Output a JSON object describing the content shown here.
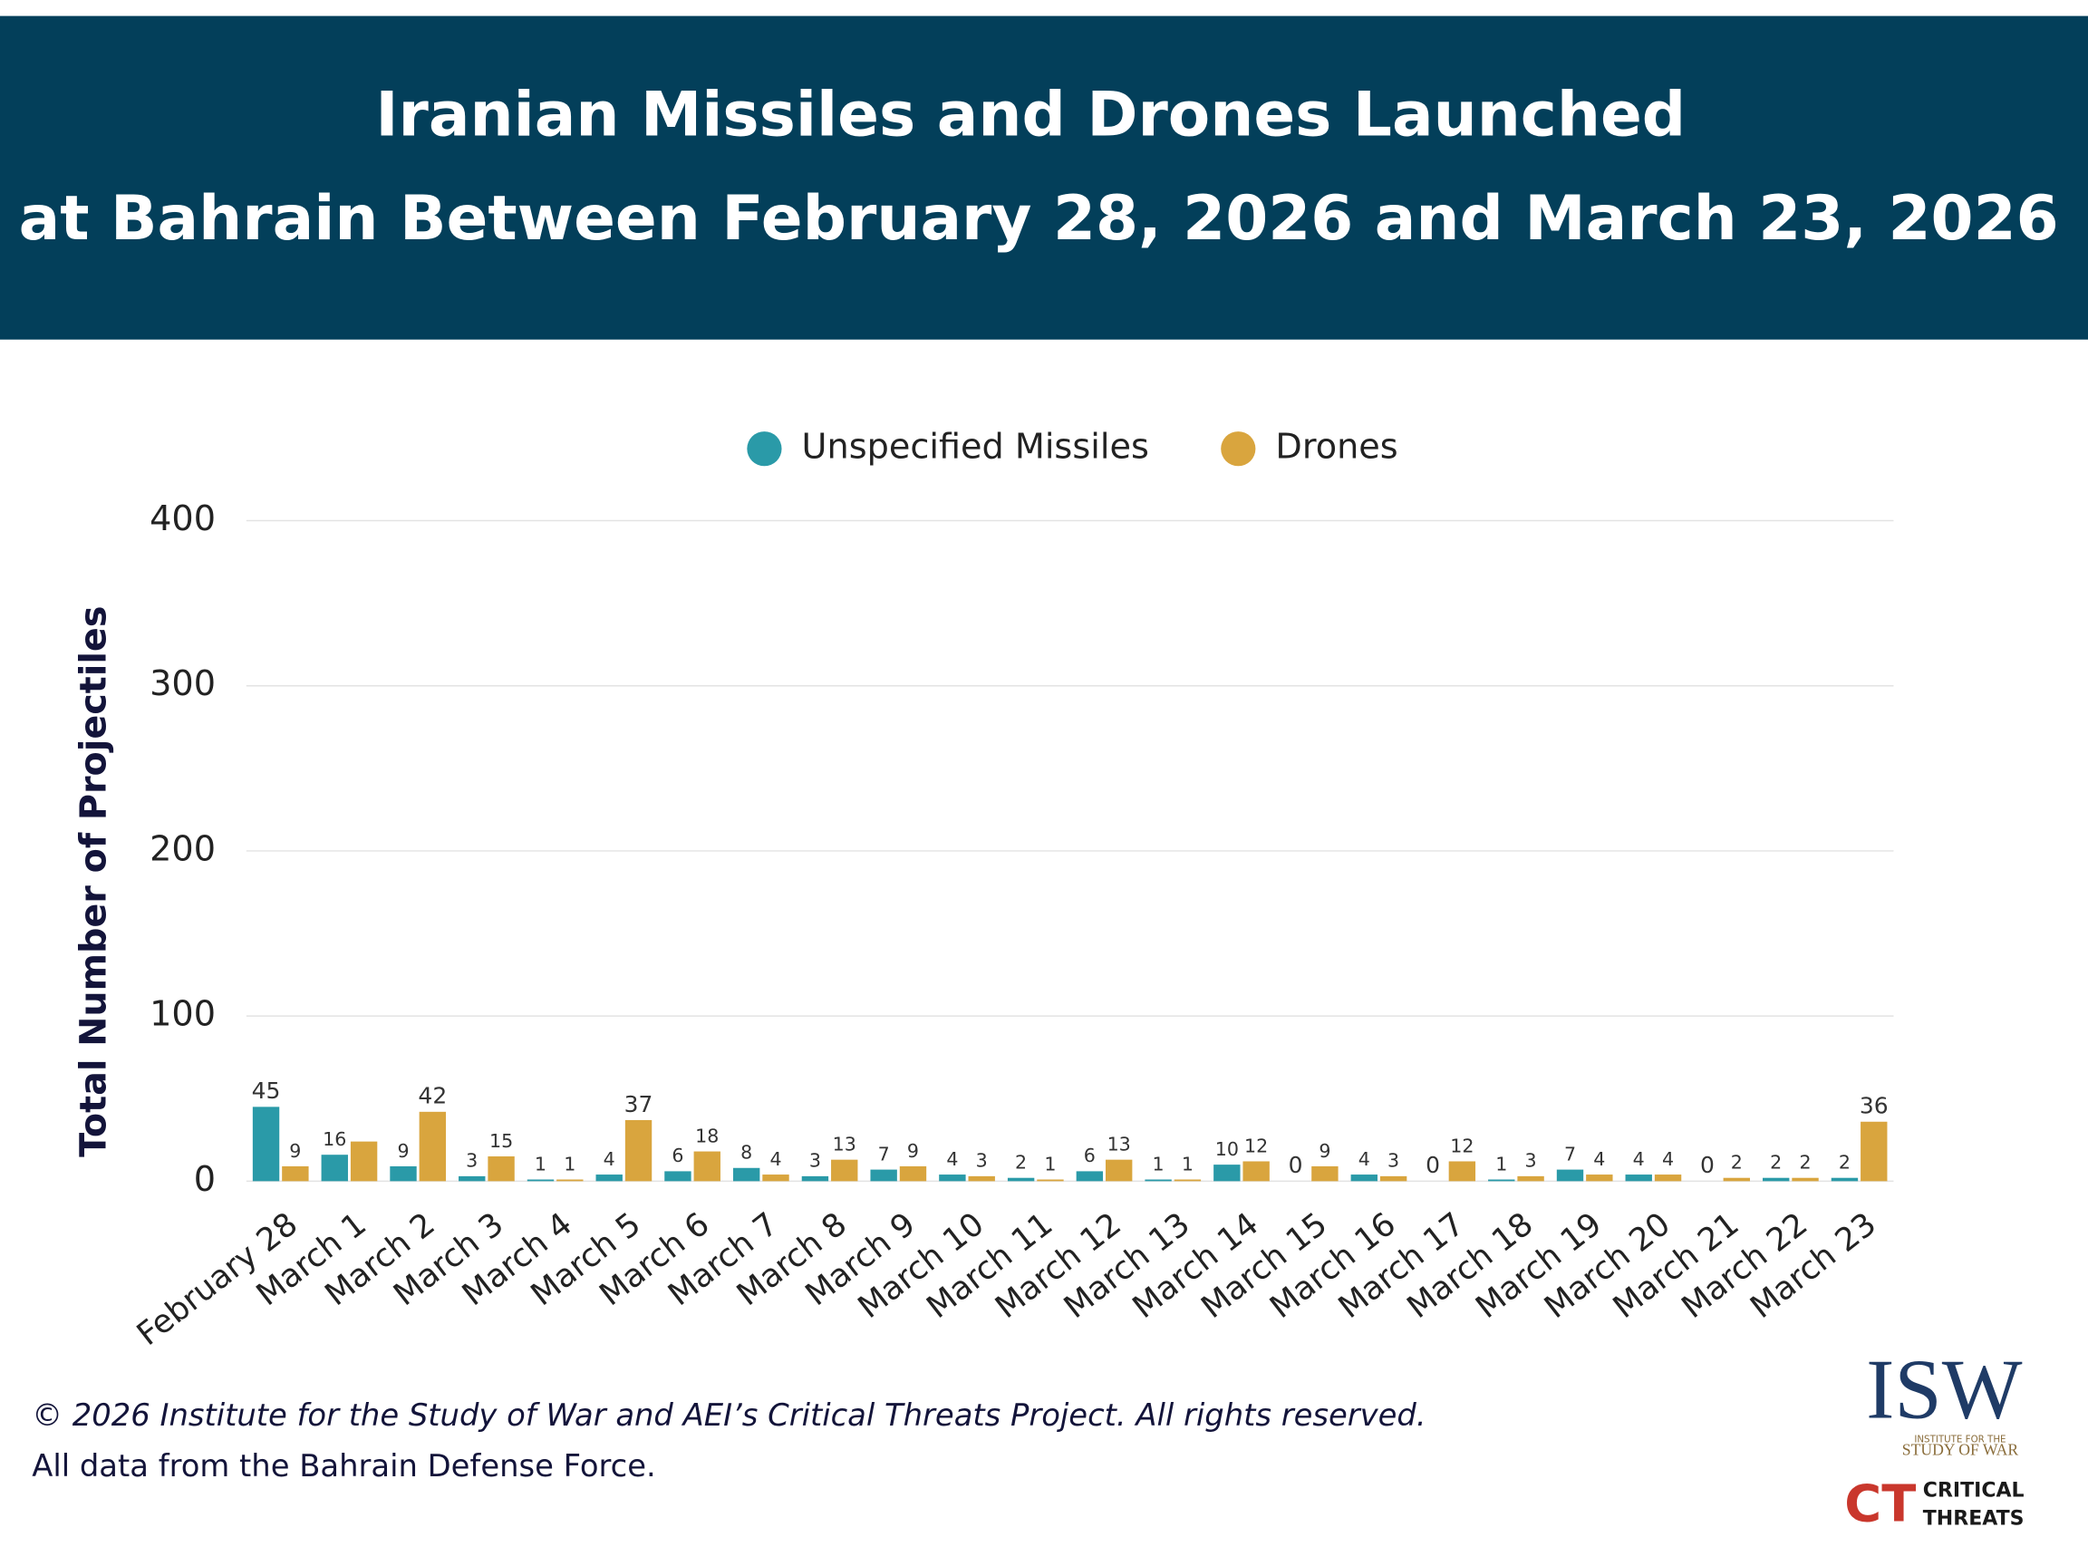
{
  "chart_data": {
    "type": "bar",
    "title": [
      "Iranian Missiles and Drones Launched",
      "at Bahrain Between February 28, 2026 and March 23, 2026"
    ],
    "ylabel": "Total Number of Projectiles",
    "categories": [
      "February 28",
      "March 1",
      "March 2",
      "March 3",
      "March 4",
      "March 5",
      "March 6",
      "March 7",
      "March 8",
      "March 9",
      "March 10",
      "March 11",
      "March 12",
      "March 13",
      "March 14",
      "March 15",
      "March 16",
      "March 17",
      "March 18",
      "March 19",
      "March 20",
      "March 21",
      "March 22",
      "March 23"
    ],
    "series": [
      {
        "name": "Unspecified Missiles",
        "color": "#2a9aa8",
        "values": [
          45,
          16,
          9,
          3,
          1,
          4,
          6,
          8,
          3,
          7,
          4,
          2,
          6,
          1,
          10,
          0,
          4,
          0,
          1,
          7,
          4,
          0,
          2,
          2
        ]
      },
      {
        "name": "Drones",
        "color": "#d9a53e",
        "values": [
          9,
          24,
          42,
          15,
          1,
          37,
          18,
          4,
          13,
          9,
          3,
          1,
          13,
          1,
          12,
          9,
          3,
          12,
          3,
          4,
          4,
          2,
          2,
          36
        ],
        "value_labels": [
          "9",
          null,
          "42",
          "15",
          "1",
          "37",
          "18",
          "4",
          "13",
          "9",
          "3",
          "1",
          "13",
          "1",
          "12",
          "9",
          "3",
          "12",
          "3",
          "4",
          "4",
          "2",
          "2",
          "36"
        ]
      }
    ],
    "ylim": [
      0,
      400
    ],
    "yticks": [
      0,
      100,
      200,
      300,
      400
    ],
    "grid": true,
    "legend": "top"
  },
  "footer": {
    "copyright": "© 2026 Institute for the Study of War and AEI’s Critical Threats Project. All rights reserved.",
    "source": "All data from the Bahrain Defense Force."
  },
  "logos": {
    "isw": "ISW",
    "isw_line1": "INSTITUTE FOR THE",
    "isw_line2": "STUDY OF WAR",
    "ct": "CT",
    "ct_line1": "CRITICAL",
    "ct_line2": "THREATS"
  }
}
